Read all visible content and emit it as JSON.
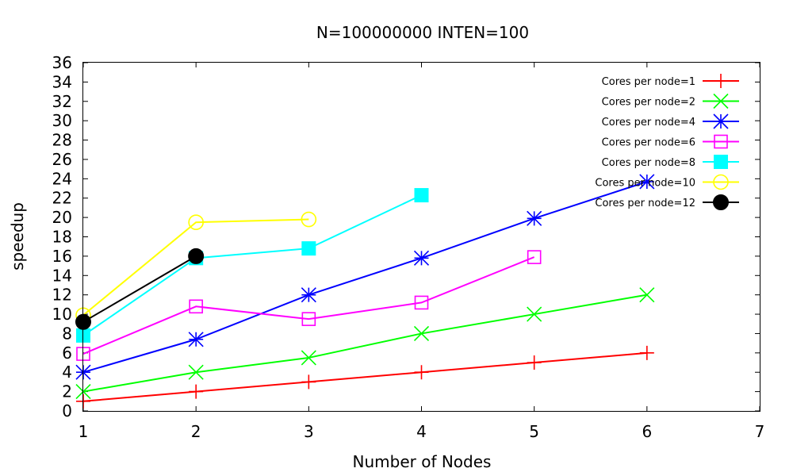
{
  "chart_data": {
    "type": "line",
    "title": "N=100000000 INTEN=100",
    "xlabel": "Number of Nodes",
    "ylabel": "speedup",
    "xlim": [
      1,
      7
    ],
    "ylim": [
      0,
      36
    ],
    "xticks": [
      "1",
      "2",
      "3",
      "4",
      "5",
      "6",
      "7"
    ],
    "yticks": [
      "0",
      "2",
      "4",
      "6",
      "8",
      "10",
      "12",
      "14",
      "16",
      "18",
      "20",
      "22",
      "24",
      "26",
      "28",
      "30",
      "32",
      "34",
      "36"
    ],
    "grid": false,
    "legend_position": "top-right",
    "series": [
      {
        "name": "Cores per node=1",
        "color": "#ff0000",
        "marker": "plus",
        "x": [
          1,
          2,
          3,
          4,
          5,
          6
        ],
        "y": [
          1,
          2,
          3,
          4,
          5,
          6
        ]
      },
      {
        "name": "Cores per node=2",
        "color": "#00ff00",
        "marker": "cross",
        "x": [
          1,
          2,
          3,
          4,
          5,
          6
        ],
        "y": [
          2,
          4,
          5.5,
          8,
          10,
          12
        ]
      },
      {
        "name": "Cores per node=4",
        "color": "#0000ff",
        "marker": "asterisk",
        "x": [
          1,
          2,
          3,
          4,
          5,
          6
        ],
        "y": [
          4,
          7.4,
          12,
          15.8,
          19.9,
          23.7
        ]
      },
      {
        "name": "Cores per node=6",
        "color": "#ff00ff",
        "marker": "open-square",
        "x": [
          1,
          2,
          3,
          4,
          5
        ],
        "y": [
          5.9,
          10.8,
          9.5,
          11.2,
          15.9
        ]
      },
      {
        "name": "Cores per node=8",
        "color": "#00ffff",
        "marker": "filled-square",
        "x": [
          1,
          2,
          3,
          4
        ],
        "y": [
          7.8,
          15.8,
          16.8,
          22.3
        ]
      },
      {
        "name": "Cores per node=10",
        "color": "#ffff00",
        "marker": "open-circle",
        "x": [
          1,
          2,
          3
        ],
        "y": [
          9.9,
          19.5,
          19.8
        ]
      },
      {
        "name": "Cores per node=12",
        "color": "#000000",
        "marker": "filled-circle",
        "x": [
          1,
          2
        ],
        "y": [
          9.2,
          16
        ]
      }
    ]
  }
}
